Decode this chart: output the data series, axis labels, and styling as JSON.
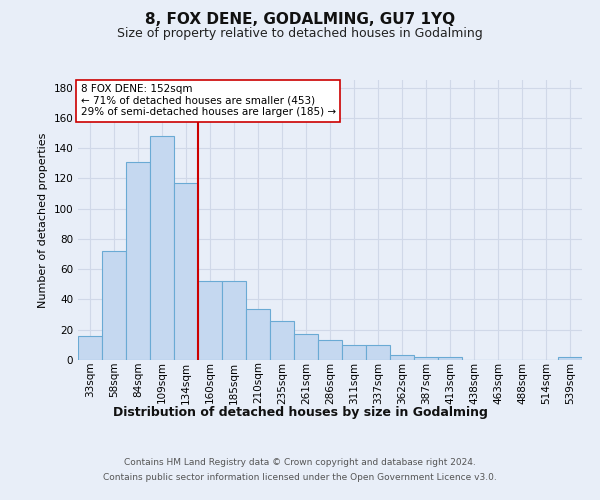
{
  "title": "8, FOX DENE, GODALMING, GU7 1YQ",
  "subtitle": "Size of property relative to detached houses in Godalming",
  "xlabel": "Distribution of detached houses by size in Godalming",
  "ylabel": "Number of detached properties",
  "categories": [
    "33sqm",
    "58sqm",
    "84sqm",
    "109sqm",
    "134sqm",
    "160sqm",
    "185sqm",
    "210sqm",
    "235sqm",
    "261sqm",
    "286sqm",
    "311sqm",
    "337sqm",
    "362sqm",
    "387sqm",
    "413sqm",
    "438sqm",
    "463sqm",
    "488sqm",
    "514sqm",
    "539sqm"
  ],
  "values": [
    16,
    72,
    131,
    148,
    117,
    52,
    52,
    34,
    26,
    17,
    13,
    10,
    10,
    3,
    2,
    2,
    0,
    0,
    0,
    0,
    2
  ],
  "bar_color": "#c5d8f0",
  "bar_edge_color": "#6aaad4",
  "vline_color": "#cc0000",
  "vline_pos": 4.5,
  "annotation_text": "8 FOX DENE: 152sqm\n← 71% of detached houses are smaller (453)\n29% of semi-detached houses are larger (185) →",
  "bg_color": "#e8eef8",
  "grid_color": "#d0d8e8",
  "ylim": [
    0,
    185
  ],
  "yticks": [
    0,
    20,
    40,
    60,
    80,
    100,
    120,
    140,
    160,
    180
  ],
  "footer1": "Contains HM Land Registry data © Crown copyright and database right 2024.",
  "footer2": "Contains public sector information licensed under the Open Government Licence v3.0.",
  "title_fontsize": 11,
  "subtitle_fontsize": 9,
  "ylabel_fontsize": 8,
  "xlabel_fontsize": 9,
  "tick_fontsize": 7.5,
  "footer_fontsize": 6.5
}
